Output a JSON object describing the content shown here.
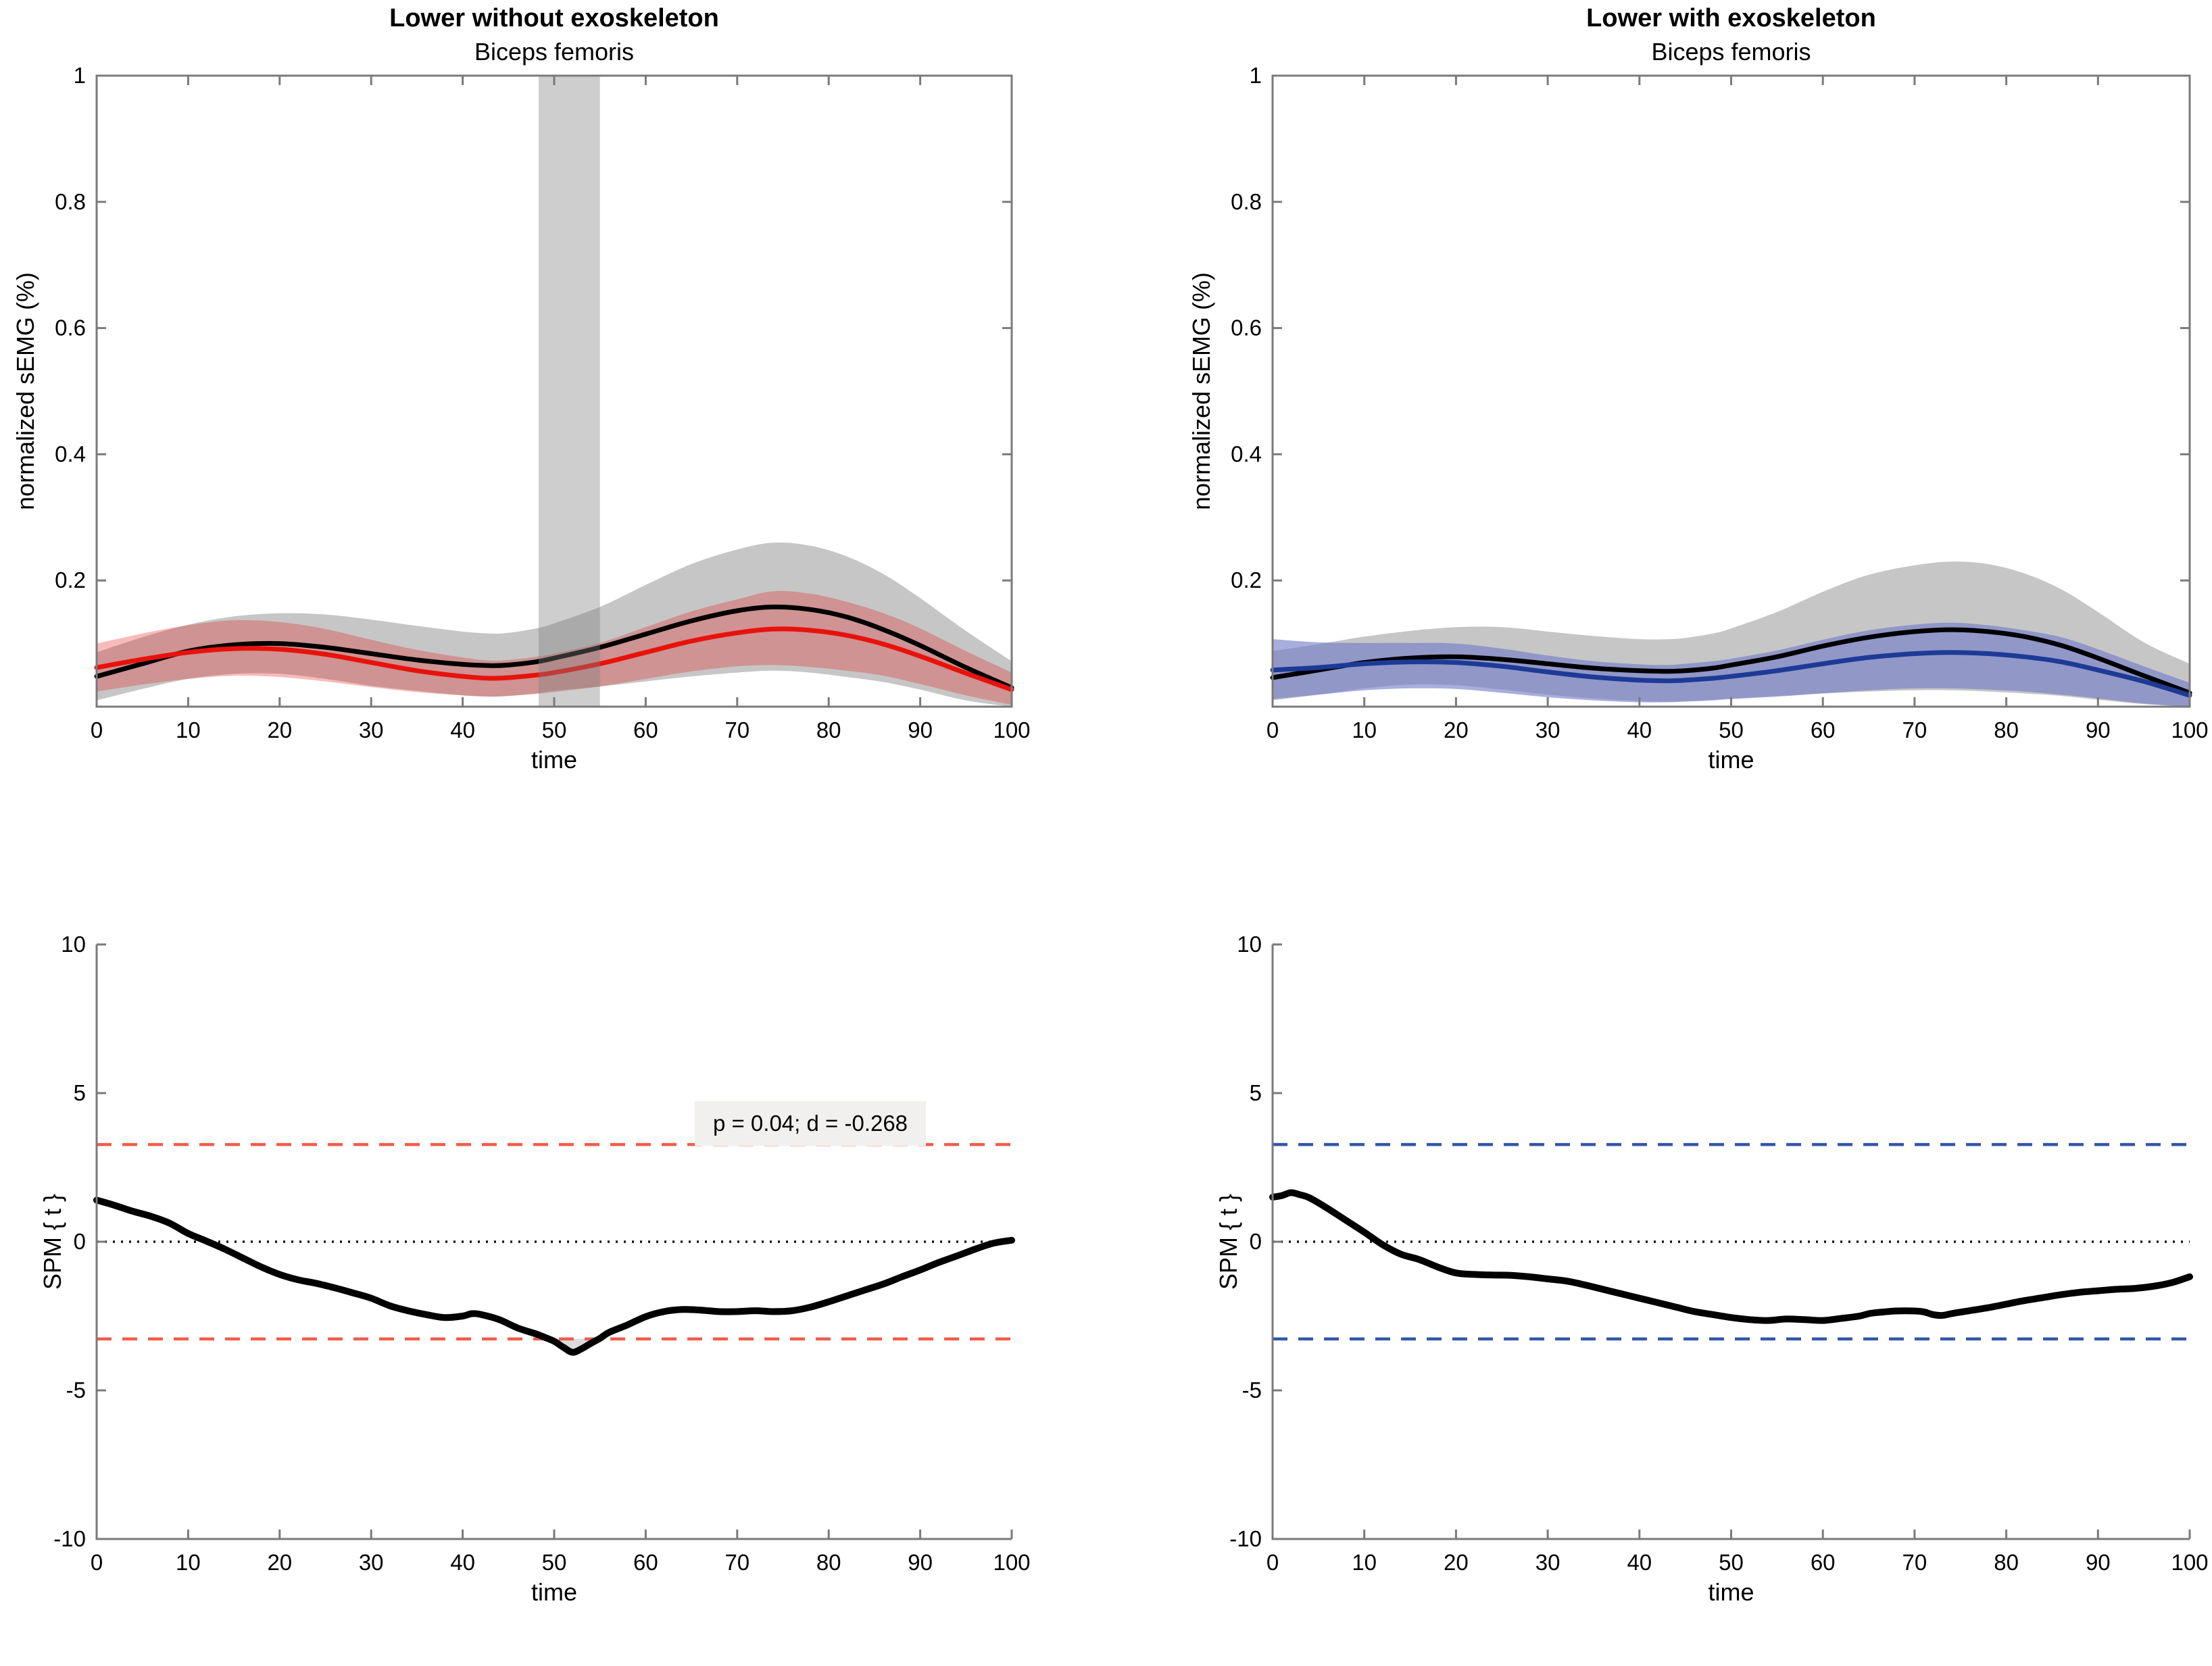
{
  "chart_data": [
    {
      "id": "top_left",
      "type": "line",
      "title": "Lower without exoskeleton",
      "subtitle": "Biceps femoris",
      "xlabel": "time",
      "ylabel": "normalized sEMG (%)",
      "xlim": [
        0,
        100
      ],
      "ylim": [
        0,
        1
      ],
      "xticks": [
        0,
        10,
        20,
        30,
        40,
        50,
        60,
        70,
        80,
        90,
        100
      ],
      "yticks": [
        0.2,
        0.4,
        0.6,
        0.8,
        1
      ],
      "box": true,
      "x": [
        0,
        5,
        10,
        15,
        20,
        25,
        30,
        35,
        40,
        43,
        45,
        48,
        50,
        55,
        60,
        65,
        70,
        74,
        78,
        82,
        86,
        90,
        95,
        100
      ],
      "bands": [
        {
          "name": "condition-a-sd-band",
          "color": "rgba(128,128,128,0.45)",
          "upper": [
            0.086,
            0.11,
            0.13,
            0.143,
            0.148,
            0.146,
            0.138,
            0.128,
            0.119,
            0.116,
            0.117,
            0.124,
            0.132,
            0.158,
            0.193,
            0.226,
            0.249,
            0.26,
            0.255,
            0.238,
            0.21,
            0.172,
            0.12,
            0.072
          ],
          "lower": [
            0.01,
            0.028,
            0.044,
            0.052,
            0.052,
            0.044,
            0.033,
            0.025,
            0.018,
            0.016,
            0.017,
            0.021,
            0.025,
            0.032,
            0.04,
            0.048,
            0.054,
            0.057,
            0.054,
            0.047,
            0.039,
            0.027,
            0.01,
            0.0
          ]
        },
        {
          "name": "condition-b-sd-band",
          "color": "rgba(225,30,25,0.30)",
          "upper": [
            0.1,
            0.116,
            0.129,
            0.137,
            0.134,
            0.123,
            0.106,
            0.09,
            0.078,
            0.073,
            0.074,
            0.079,
            0.084,
            0.101,
            0.126,
            0.151,
            0.17,
            0.183,
            0.179,
            0.166,
            0.148,
            0.124,
            0.088,
            0.054
          ],
          "lower": [
            0.024,
            0.035,
            0.044,
            0.049,
            0.047,
            0.04,
            0.031,
            0.023,
            0.018,
            0.016,
            0.017,
            0.02,
            0.023,
            0.032,
            0.044,
            0.056,
            0.064,
            0.066,
            0.063,
            0.057,
            0.049,
            0.036,
            0.018,
            0.003
          ]
        }
      ],
      "series": [
        {
          "name": "mean-black",
          "color": "#000000",
          "values": [
            0.048,
            0.068,
            0.088,
            0.098,
            0.1,
            0.094,
            0.084,
            0.074,
            0.067,
            0.065,
            0.066,
            0.071,
            0.077,
            0.094,
            0.115,
            0.136,
            0.152,
            0.158,
            0.154,
            0.142,
            0.122,
            0.097,
            0.062,
            0.03
          ]
        },
        {
          "name": "mean-red",
          "color": "#e8120c",
          "values": [
            0.062,
            0.075,
            0.086,
            0.092,
            0.091,
            0.083,
            0.07,
            0.057,
            0.048,
            0.045,
            0.046,
            0.05,
            0.054,
            0.068,
            0.086,
            0.104,
            0.117,
            0.123,
            0.121,
            0.113,
            0.099,
            0.08,
            0.053,
            0.027
          ]
        }
      ],
      "significance_band": {
        "x0": 48.3,
        "x1": 55.0,
        "color": "rgba(128,126,126,0.38)"
      }
    },
    {
      "id": "top_right",
      "type": "line",
      "title": "Lower with exoskeleton",
      "subtitle": "Biceps femoris",
      "xlabel": "time",
      "ylabel": "normalized sEMG (%)",
      "xlim": [
        0,
        100
      ],
      "ylim": [
        0,
        1
      ],
      "xticks": [
        0,
        10,
        20,
        30,
        40,
        50,
        60,
        70,
        80,
        90,
        100
      ],
      "yticks": [
        0.2,
        0.4,
        0.6,
        0.8,
        1
      ],
      "box": true,
      "x": [
        0,
        5,
        10,
        15,
        20,
        25,
        30,
        35,
        40,
        43,
        45,
        48,
        50,
        55,
        60,
        65,
        70,
        74,
        78,
        82,
        86,
        90,
        95,
        100
      ],
      "bands": [
        {
          "name": "condition-a-sd-band",
          "color": "rgba(128,128,128,0.45)",
          "upper": [
            0.088,
            0.099,
            0.111,
            0.12,
            0.126,
            0.126,
            0.119,
            0.112,
            0.107,
            0.107,
            0.109,
            0.116,
            0.124,
            0.15,
            0.182,
            0.209,
            0.224,
            0.23,
            0.226,
            0.211,
            0.186,
            0.15,
            0.102,
            0.068
          ],
          "lower": [
            0.01,
            0.019,
            0.029,
            0.035,
            0.034,
            0.027,
            0.019,
            0.013,
            0.009,
            0.008,
            0.009,
            0.011,
            0.013,
            0.017,
            0.021,
            0.024,
            0.026,
            0.026,
            0.024,
            0.021,
            0.017,
            0.011,
            0.004,
            0.0
          ]
        },
        {
          "name": "condition-b-sd-band",
          "color": "rgba(110,120,200,0.60)",
          "upper": [
            0.107,
            0.102,
            0.101,
            0.101,
            0.1,
            0.092,
            0.081,
            0.072,
            0.067,
            0.066,
            0.068,
            0.072,
            0.076,
            0.089,
            0.106,
            0.121,
            0.13,
            0.133,
            0.129,
            0.121,
            0.11,
            0.091,
            0.064,
            0.038
          ],
          "lower": [
            0.012,
            0.019,
            0.026,
            0.029,
            0.028,
            0.022,
            0.015,
            0.01,
            0.007,
            0.007,
            0.008,
            0.01,
            0.012,
            0.016,
            0.021,
            0.026,
            0.029,
            0.029,
            0.027,
            0.024,
            0.019,
            0.013,
            0.005,
            0.0
          ]
        }
      ],
      "series": [
        {
          "name": "mean-black",
          "color": "#000000",
          "values": [
            0.046,
            0.058,
            0.07,
            0.077,
            0.079,
            0.075,
            0.068,
            0.061,
            0.057,
            0.056,
            0.057,
            0.061,
            0.066,
            0.079,
            0.096,
            0.11,
            0.119,
            0.122,
            0.119,
            0.111,
            0.097,
            0.077,
            0.049,
            0.022
          ]
        },
        {
          "name": "mean-blue",
          "color": "#1d3a96",
          "values": [
            0.058,
            0.062,
            0.068,
            0.071,
            0.07,
            0.064,
            0.055,
            0.047,
            0.042,
            0.041,
            0.042,
            0.045,
            0.048,
            0.057,
            0.068,
            0.078,
            0.084,
            0.086,
            0.084,
            0.079,
            0.071,
            0.058,
            0.04,
            0.018
          ]
        }
      ]
    },
    {
      "id": "bottom_left",
      "type": "line",
      "xlabel": "time",
      "ylabel": "SPM { t }",
      "xlim": [
        0,
        100
      ],
      "ylim": [
        -10,
        10
      ],
      "xticks": [
        0,
        10,
        20,
        30,
        40,
        50,
        60,
        70,
        80,
        90,
        100
      ],
      "yticks": [
        10,
        5,
        0,
        -5,
        -10
      ],
      "box": false,
      "zero_line": true,
      "threshold": 3.27,
      "threshold_color": "#f25c4a",
      "cluster_fill_color": "#dcdcdc",
      "annotation": {
        "text": "p = 0.04; d = -0.268",
        "x": 78,
        "y": 3.9
      },
      "curve": {
        "color": "#000000",
        "x": [
          0,
          2,
          4,
          6,
          8,
          10,
          12,
          14,
          16,
          18,
          20,
          22,
          24,
          26,
          28,
          30,
          32,
          34,
          36,
          38,
          40,
          41,
          42,
          44,
          46,
          48,
          49,
          50,
          51,
          52,
          53,
          54,
          55,
          56,
          58,
          60,
          62,
          64,
          66,
          68,
          70,
          72,
          74,
          76,
          78,
          80,
          82,
          84,
          86,
          88,
          90,
          92,
          94,
          96,
          98,
          100
        ],
        "y": [
          1.4,
          1.22,
          1.02,
          0.85,
          0.62,
          0.28,
          0.02,
          -0.25,
          -0.55,
          -0.85,
          -1.1,
          -1.28,
          -1.4,
          -1.55,
          -1.72,
          -1.9,
          -2.15,
          -2.32,
          -2.45,
          -2.55,
          -2.5,
          -2.42,
          -2.45,
          -2.62,
          -2.9,
          -3.1,
          -3.22,
          -3.35,
          -3.55,
          -3.72,
          -3.6,
          -3.42,
          -3.25,
          -3.05,
          -2.8,
          -2.52,
          -2.35,
          -2.28,
          -2.3,
          -2.35,
          -2.35,
          -2.32,
          -2.35,
          -2.32,
          -2.2,
          -2.02,
          -1.82,
          -1.62,
          -1.42,
          -1.18,
          -0.95,
          -0.7,
          -0.48,
          -0.25,
          -0.05,
          0.05
        ]
      }
    },
    {
      "id": "bottom_right",
      "type": "line",
      "xlabel": "time",
      "ylabel": "SPM { t }",
      "xlim": [
        0,
        100
      ],
      "ylim": [
        -10,
        10
      ],
      "xticks": [
        0,
        10,
        20,
        30,
        40,
        50,
        60,
        70,
        80,
        90,
        100
      ],
      "yticks": [
        10,
        5,
        0,
        -5,
        -10
      ],
      "box": false,
      "zero_line": true,
      "threshold": 3.27,
      "threshold_color": "#3356aa",
      "curve": {
        "color": "#000000",
        "x": [
          0,
          1,
          2,
          3,
          4,
          6,
          8,
          10,
          12,
          14,
          16,
          18,
          20,
          22,
          24,
          26,
          28,
          30,
          32,
          34,
          36,
          38,
          40,
          42,
          44,
          46,
          48,
          50,
          52,
          54,
          56,
          58,
          60,
          62,
          64,
          65,
          66,
          68,
          70,
          71,
          72,
          73,
          74,
          76,
          78,
          80,
          82,
          84,
          86,
          88,
          90,
          92,
          94,
          96,
          98,
          100
        ],
        "y": [
          1.5,
          1.55,
          1.65,
          1.58,
          1.48,
          1.12,
          0.72,
          0.32,
          -0.1,
          -0.42,
          -0.6,
          -0.85,
          -1.05,
          -1.1,
          -1.12,
          -1.13,
          -1.18,
          -1.25,
          -1.32,
          -1.45,
          -1.6,
          -1.75,
          -1.9,
          -2.05,
          -2.2,
          -2.35,
          -2.45,
          -2.55,
          -2.62,
          -2.65,
          -2.6,
          -2.62,
          -2.65,
          -2.58,
          -2.5,
          -2.42,
          -2.38,
          -2.33,
          -2.33,
          -2.36,
          -2.45,
          -2.48,
          -2.42,
          -2.32,
          -2.22,
          -2.1,
          -1.98,
          -1.88,
          -1.78,
          -1.7,
          -1.65,
          -1.6,
          -1.57,
          -1.5,
          -1.38,
          -1.18
        ]
      }
    }
  ]
}
